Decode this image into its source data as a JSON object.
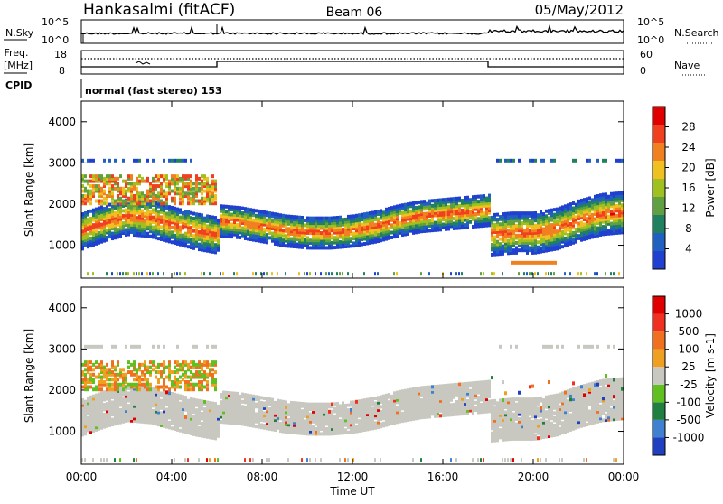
{
  "header": {
    "station": "Hankasalmi (fitACF)",
    "beam": "Beam 06",
    "date": "05/May/2012"
  },
  "top_panels": {
    "nsky_label": "N.Sky",
    "nsky_ticks": [
      "10^5",
      "10^0"
    ],
    "nsearch_label": "N.Search",
    "nsearch_ticks": [
      "10^5",
      "10^0"
    ],
    "freq_label": "Freq.",
    "freq_unit": "[MHz]",
    "freq_ticks": [
      "18",
      "8"
    ],
    "nave_label": "Nave",
    "nave_ticks": [
      "60",
      "0"
    ],
    "cpid_label": "CPID",
    "cpid_text": "normal (fast stereo) 153"
  },
  "colors": {
    "power_scale": [
      "#2040d0",
      "#2060c0",
      "#208060",
      "#60a040",
      "#a0c020",
      "#f0c020",
      "#f08020",
      "#f04020",
      "#e00000"
    ],
    "velocity_scale": [
      "#2040c0",
      "#4080d0",
      "#208040",
      "#60c020",
      "#c8c8c0",
      "#f0a020",
      "#f07020",
      "#f03020",
      "#e00000"
    ],
    "ground_scatter": "#c8c8c0"
  },
  "chart_data": [
    {
      "type": "heatmap",
      "title": "Power",
      "ylabel": "Slant Range [km]",
      "yticks": [
        "4000",
        "3000",
        "2000",
        "1000"
      ],
      "ylim": [
        200,
        4500
      ],
      "xlim": [
        0,
        24
      ],
      "colorbar_label": "Power [dB]",
      "colorbar_ticks": [
        "28",
        "24",
        "20",
        "16",
        "12",
        "8",
        "4"
      ],
      "colorbar_range": [
        0,
        32
      ],
      "band_centerline": {
        "x": [
          0,
          1,
          2,
          3,
          4,
          5,
          6,
          6,
          7,
          8,
          9,
          10,
          11,
          12,
          13,
          14,
          15,
          16,
          17,
          18,
          18,
          19,
          20,
          21,
          22,
          23,
          24
        ],
        "y": [
          1350,
          1550,
          1700,
          1650,
          1500,
          1350,
          1250,
          1600,
          1550,
          1450,
          1350,
          1300,
          1300,
          1350,
          1450,
          1600,
          1700,
          1750,
          1800,
          1850,
          1250,
          1300,
          1300,
          1400,
          1600,
          1750,
          1800
        ]
      },
      "upper_patches": [
        {
          "x": [
            0,
            6
          ],
          "y": [
            2000,
            2700
          ]
        },
        {
          "x": [
            19,
            21
          ],
          "y": [
            500,
            700
          ]
        }
      ]
    },
    {
      "type": "heatmap",
      "title": "Velocity",
      "ylabel": "Slant Range [km]",
      "yticks": [
        "4000",
        "3000",
        "2000",
        "1000"
      ],
      "ylim": [
        200,
        4500
      ],
      "xlim": [
        0,
        24
      ],
      "xlabel": "Time UT",
      "xticks": [
        "00:00",
        "04:00",
        "08:00",
        "12:00",
        "16:00",
        "20:00",
        "00:00"
      ],
      "colorbar_label": "Velocity [m s-1]",
      "colorbar_ticks": [
        "1000",
        "500",
        "100",
        "25",
        "-25",
        "-100",
        "-500",
        "-1000"
      ]
    }
  ]
}
